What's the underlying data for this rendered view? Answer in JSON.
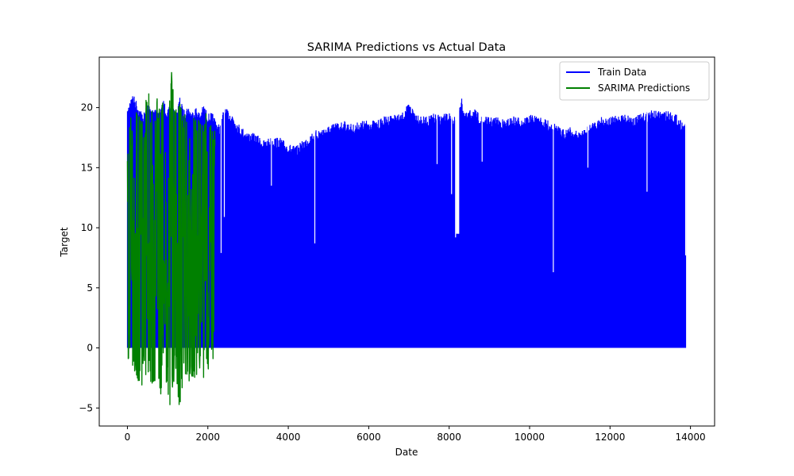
{
  "chart_data": {
    "type": "line",
    "title": "SARIMA Predictions vs Actual Data",
    "xlabel": "Date",
    "ylabel": "Target",
    "xlim": [
      -700,
      14600
    ],
    "ylim": [
      -6.5,
      24.2
    ],
    "x_ticks": [
      0,
      2000,
      4000,
      6000,
      8000,
      10000,
      12000,
      14000
    ],
    "y_ticks": [
      -5,
      0,
      5,
      10,
      15,
      20
    ],
    "x_tick_labels": [
      "0",
      "2000",
      "4000",
      "6000",
      "8000",
      "10000",
      "12000",
      "14000"
    ],
    "y_tick_labels": [
      "−5",
      "0",
      "5",
      "10",
      "15",
      "20"
    ],
    "grid": false,
    "legend_position": "top-right",
    "series": [
      {
        "name": "Train Data",
        "color": "#0000ff",
        "x_range": [
          0,
          13880
        ],
        "lower_envelope": 0,
        "upper_envelope": {
          "x": [
            0,
            100,
            200,
            300,
            400,
            500,
            600,
            700,
            800,
            900,
            1000,
            1100,
            1200,
            1300,
            1400,
            1500,
            1600,
            1700,
            1800,
            1900,
            2000,
            2100,
            2200,
            2300,
            2400,
            2600,
            2800,
            3000,
            3200,
            3400,
            3600,
            3800,
            4000,
            4200,
            4400,
            4600,
            4800,
            5000,
            5200,
            5400,
            5600,
            5800,
            6000,
            6200,
            6400,
            6600,
            6800,
            7000,
            7200,
            7400,
            7600,
            7800,
            8000,
            8100,
            8200,
            8300,
            8400,
            8600,
            8800,
            9000,
            9200,
            9400,
            9600,
            9800,
            10000,
            10200,
            10400,
            10600,
            10800,
            11000,
            11200,
            11400,
            11600,
            11800,
            12000,
            12200,
            12400,
            12600,
            12800,
            13000,
            13200,
            13400,
            13600,
            13880
          ],
          "y": [
            19.7,
            21.3,
            20.8,
            20.0,
            19.5,
            20.5,
            19.9,
            20.3,
            19.6,
            20.7,
            19.8,
            20.5,
            19.4,
            20.9,
            19.8,
            20.2,
            19.7,
            20.1,
            19.6,
            20.3,
            19.5,
            19.6,
            19.0,
            18.5,
            20.0,
            19.6,
            18.5,
            18.0,
            17.8,
            17.3,
            17.6,
            17.5,
            17.0,
            16.8,
            17.4,
            18.0,
            18.3,
            18.5,
            18.8,
            18.9,
            18.6,
            18.9,
            19.0,
            18.9,
            19.3,
            19.5,
            19.4,
            20.4,
            19.6,
            19.2,
            19.5,
            19.4,
            19.6,
            19.0,
            20.0,
            20.9,
            19.5,
            20.0,
            19.3,
            19.2,
            19.2,
            19.0,
            19.3,
            19.2,
            19.4,
            19.3,
            19.0,
            18.8,
            18.2,
            18.4,
            18.0,
            18.3,
            18.9,
            19.3,
            19.2,
            19.4,
            19.5,
            19.3,
            19.5,
            19.8,
            19.7,
            19.8,
            19.6,
            18.6
          ]
        },
        "dips": [
          {
            "x": 2330,
            "y": 7.9
          },
          {
            "x": 2410,
            "y": 10.9
          },
          {
            "x": 3580,
            "y": 13.5
          },
          {
            "x": 4660,
            "y": 8.7
          },
          {
            "x": 7700,
            "y": 15.3
          },
          {
            "x": 8060,
            "y": 12.8
          },
          {
            "x": 8160,
            "y": 9.2
          },
          {
            "x": 8230,
            "y": 9.5
          },
          {
            "x": 8820,
            "y": 15.5
          },
          {
            "x": 10590,
            "y": 6.3
          },
          {
            "x": 11450,
            "y": 15.0
          },
          {
            "x": 12920,
            "y": 13.0
          },
          {
            "x": 13880,
            "y": 7.7
          }
        ],
        "gaps": [
          [
            8170,
            8250
          ]
        ]
      },
      {
        "name": "SARIMA Predictions",
        "color": "#008000",
        "x_range": [
          0,
          2180
        ],
        "upper_envelope": {
          "x": [
            0,
            100,
            150,
            200,
            300,
            400,
            500,
            550,
            600,
            700,
            800,
            900,
            1000,
            1100,
            1150,
            1200,
            1300,
            1400,
            1500,
            1600,
            1700,
            1800,
            1900,
            2000,
            2100,
            2180
          ],
          "y": [
            17.0,
            21.3,
            20.5,
            21.0,
            19.5,
            18.5,
            22.5,
            21.0,
            20.0,
            21.5,
            20.0,
            20.5,
            19.0,
            23.4,
            21.0,
            20.0,
            21.0,
            19.0,
            20.5,
            19.5,
            19.0,
            20.0,
            19.0,
            20.0,
            19.5,
            18.0
          ]
        },
        "lower_envelope": {
          "x": [
            0,
            100,
            200,
            300,
            350,
            400,
            500,
            600,
            700,
            800,
            900,
            1000,
            1050,
            1100,
            1200,
            1300,
            1400,
            1500,
            1600,
            1700,
            1800,
            1900,
            2000,
            2100,
            2180
          ],
          "y": [
            -2.2,
            -1.5,
            -2.5,
            -3.0,
            -3.9,
            -2.0,
            -2.5,
            -3.5,
            -4.0,
            -4.2,
            -3.0,
            -3.8,
            -5.2,
            -3.5,
            -3.0,
            -5.3,
            -2.5,
            -3.2,
            -2.5,
            -3.0,
            -2.0,
            -2.5,
            -1.8,
            -1.5,
            -0.5
          ]
        }
      }
    ]
  }
}
